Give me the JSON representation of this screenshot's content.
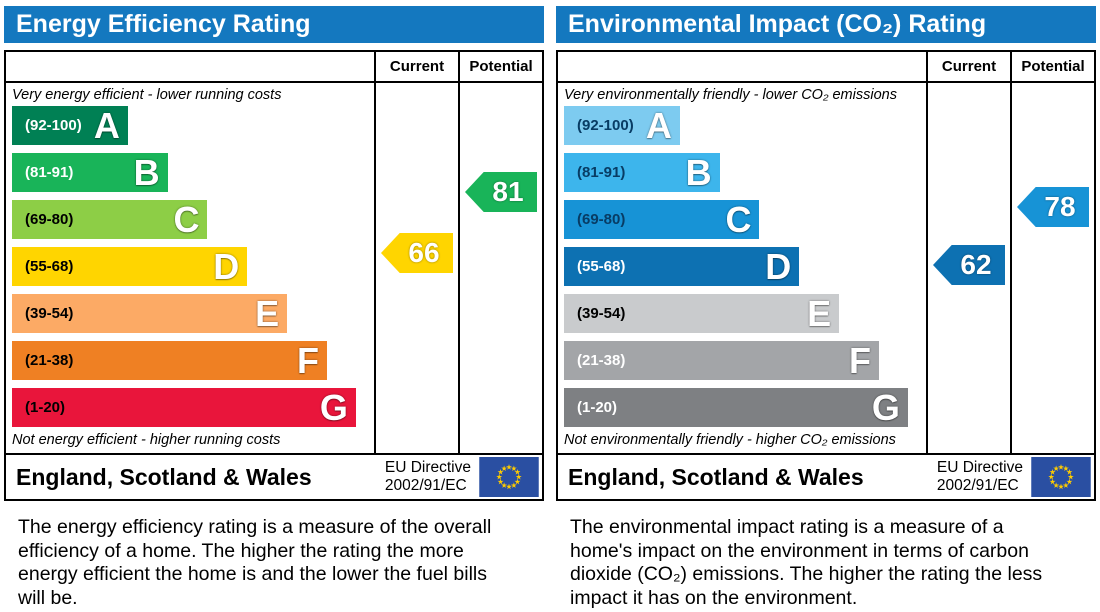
{
  "accent": {
    "header_bg": "#1478bf",
    "eu_flag_blue": "#2a4fa2",
    "eu_star_yellow": "#ffcc00"
  },
  "panels": [
    {
      "title": "Energy Efficiency Rating",
      "columns": {
        "current": "Current",
        "potential": "Potential"
      },
      "top_note": "Very energy efficient - lower running costs",
      "bottom_note": "Not energy efficient - higher running costs",
      "bands": [
        {
          "letter": "A",
          "range_label": "(92-100)",
          "min": 92,
          "max": 100,
          "color": "#008054",
          "label_color": "#ffffff"
        },
        {
          "letter": "B",
          "range_label": "(81-91)",
          "min": 81,
          "max": 91,
          "color": "#19b459",
          "label_color": "#ffffff"
        },
        {
          "letter": "C",
          "range_label": "(69-80)",
          "min": 69,
          "max": 80,
          "color": "#8dce46",
          "label_color": "#000000"
        },
        {
          "letter": "D",
          "range_label": "(55-68)",
          "min": 55,
          "max": 68,
          "color": "#ffd500",
          "label_color": "#000000"
        },
        {
          "letter": "E",
          "range_label": "(39-54)",
          "min": 39,
          "max": 54,
          "color": "#fcaa65",
          "label_color": "#000000"
        },
        {
          "letter": "F",
          "range_label": "(21-38)",
          "min": 21,
          "max": 38,
          "color": "#ef8023",
          "label_color": "#000000"
        },
        {
          "letter": "G",
          "range_label": "(1-20)",
          "min": 1,
          "max": 20,
          "color": "#e9153b",
          "label_color": "#000000"
        }
      ],
      "current": {
        "value": 66,
        "color": "#ffd500"
      },
      "potential": {
        "value": 81,
        "color": "#19b459"
      },
      "footer": {
        "region": "England, Scotland & Wales",
        "directive_line1": "EU Directive",
        "directive_line2": "2002/91/EC"
      },
      "description": "The energy efficiency rating is a measure of the overall efficiency of a home. The higher the rating the more energy efficient the home is and the lower the fuel bills will be."
    },
    {
      "title": "Environmental Impact (CO₂) Rating",
      "columns": {
        "current": "Current",
        "potential": "Potential"
      },
      "top_note": "Very environmentally friendly - lower CO₂ emissions",
      "bottom_note": "Not environmentally friendly - higher CO₂ emissions",
      "bands": [
        {
          "letter": "A",
          "range_label": "(92-100)",
          "min": 92,
          "max": 100,
          "color": "#7dcbf0",
          "label_color": "#083c64"
        },
        {
          "letter": "B",
          "range_label": "(81-91)",
          "min": 81,
          "max": 91,
          "color": "#3db5ec",
          "label_color": "#083c64"
        },
        {
          "letter": "C",
          "range_label": "(69-80)",
          "min": 69,
          "max": 80,
          "color": "#1793d6",
          "label_color": "#083c64"
        },
        {
          "letter": "D",
          "range_label": "(55-68)",
          "min": 55,
          "max": 68,
          "color": "#0d71b2",
          "label_color": "#ffffff"
        },
        {
          "letter": "E",
          "range_label": "(39-54)",
          "min": 39,
          "max": 54,
          "color": "#c9cbcd",
          "label_color": "#000000"
        },
        {
          "letter": "F",
          "range_label": "(21-38)",
          "min": 21,
          "max": 38,
          "color": "#a3a5a8",
          "label_color": "#ffffff"
        },
        {
          "letter": "G",
          "range_label": "(1-20)",
          "min": 1,
          "max": 20,
          "color": "#7e8083",
          "label_color": "#ffffff"
        }
      ],
      "current": {
        "value": 62,
        "color": "#0d71b2"
      },
      "potential": {
        "value": 78,
        "color": "#1793d6"
      },
      "footer": {
        "region": "England, Scotland & Wales",
        "directive_line1": "EU Directive",
        "directive_line2": "2002/91/EC"
      },
      "description": "The environmental impact rating is a measure of a home's impact on the environment in terms of carbon dioxide (CO₂) emissions. The higher the rating the less impact it has on the environment."
    }
  ],
  "chart_data": [
    {
      "type": "bar",
      "title": "Energy Efficiency Rating",
      "categories": [
        "A (92-100)",
        "B (81-91)",
        "C (69-80)",
        "D (55-68)",
        "E (39-54)",
        "F (21-38)",
        "G (1-20)"
      ],
      "band_colors": [
        "#008054",
        "#19b459",
        "#8dce46",
        "#ffd500",
        "#fcaa65",
        "#ef8023",
        "#e9153b"
      ],
      "series": [
        {
          "name": "Current",
          "values": [
            66
          ],
          "band": "D",
          "color": "#ffd500"
        },
        {
          "name": "Potential",
          "values": [
            81
          ],
          "band": "B",
          "color": "#19b459"
        }
      ],
      "xlabel": "",
      "ylabel": "",
      "ylim": [
        1,
        100
      ],
      "annotations": [
        "Very energy efficient - lower running costs",
        "Not energy efficient - higher running costs",
        "England, Scotland & Wales",
        "EU Directive 2002/91/EC"
      ]
    },
    {
      "type": "bar",
      "title": "Environmental Impact (CO₂) Rating",
      "categories": [
        "A (92-100)",
        "B (81-91)",
        "C (69-80)",
        "D (55-68)",
        "E (39-54)",
        "F (21-38)",
        "G (1-20)"
      ],
      "band_colors": [
        "#7dcbf0",
        "#3db5ec",
        "#1793d6",
        "#0d71b2",
        "#c9cbcd",
        "#a3a5a8",
        "#7e8083"
      ],
      "series": [
        {
          "name": "Current",
          "values": [
            62
          ],
          "band": "D",
          "color": "#0d71b2"
        },
        {
          "name": "Potential",
          "values": [
            78
          ],
          "band": "C",
          "color": "#1793d6"
        }
      ],
      "xlabel": "",
      "ylabel": "",
      "ylim": [
        1,
        100
      ],
      "annotations": [
        "Very environmentally friendly - lower CO₂ emissions",
        "Not environmentally friendly - higher CO₂ emissions",
        "England, Scotland & Wales",
        "EU Directive 2002/91/EC"
      ]
    }
  ]
}
